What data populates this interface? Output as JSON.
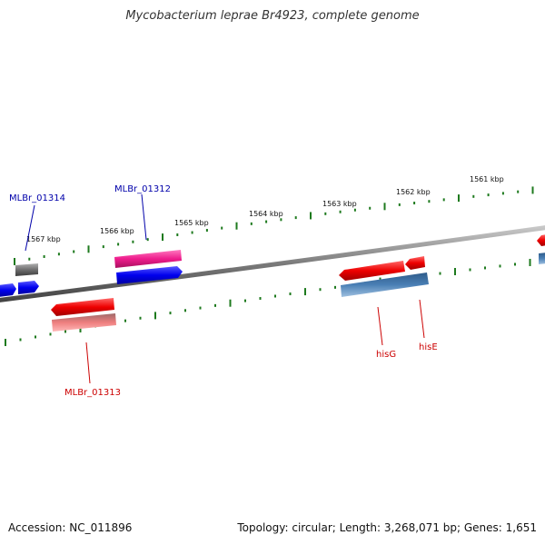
{
  "title": "Mycobacterium leprae Br4923, complete genome",
  "footer": {
    "accession": "Accession: NC_011896",
    "topology": "Topology: circular; Length: 3,268,071 bp; Genes: 1,651"
  },
  "ruler_labels": [
    "1561 kbp",
    "1562 kbp",
    "1563 kbp",
    "1564 kbp",
    "1565 kbp",
    "1566 kbp",
    "1567 kbp"
  ],
  "gene_labels": {
    "mlbr_01314": "MLBr_01314",
    "mlbr_01312": "MLBr_01312",
    "mlbr_01313": "MLBr_01313",
    "hisG": "hisG",
    "hisE": "hisE"
  },
  "colors": {
    "backbone": "#7a7a7a",
    "tick": "#1e7a1e",
    "forward_cds": "#0000ee",
    "reverse_cds": "#ee0000",
    "gene_magenta": "#ee1c8c",
    "gene_gray": "#6e6e6e",
    "gene_steelblue": "#4a7fb5",
    "gene_pink": "#ee7e7e",
    "label_blue": "#0000aa",
    "label_red": "#cc0000"
  }
}
